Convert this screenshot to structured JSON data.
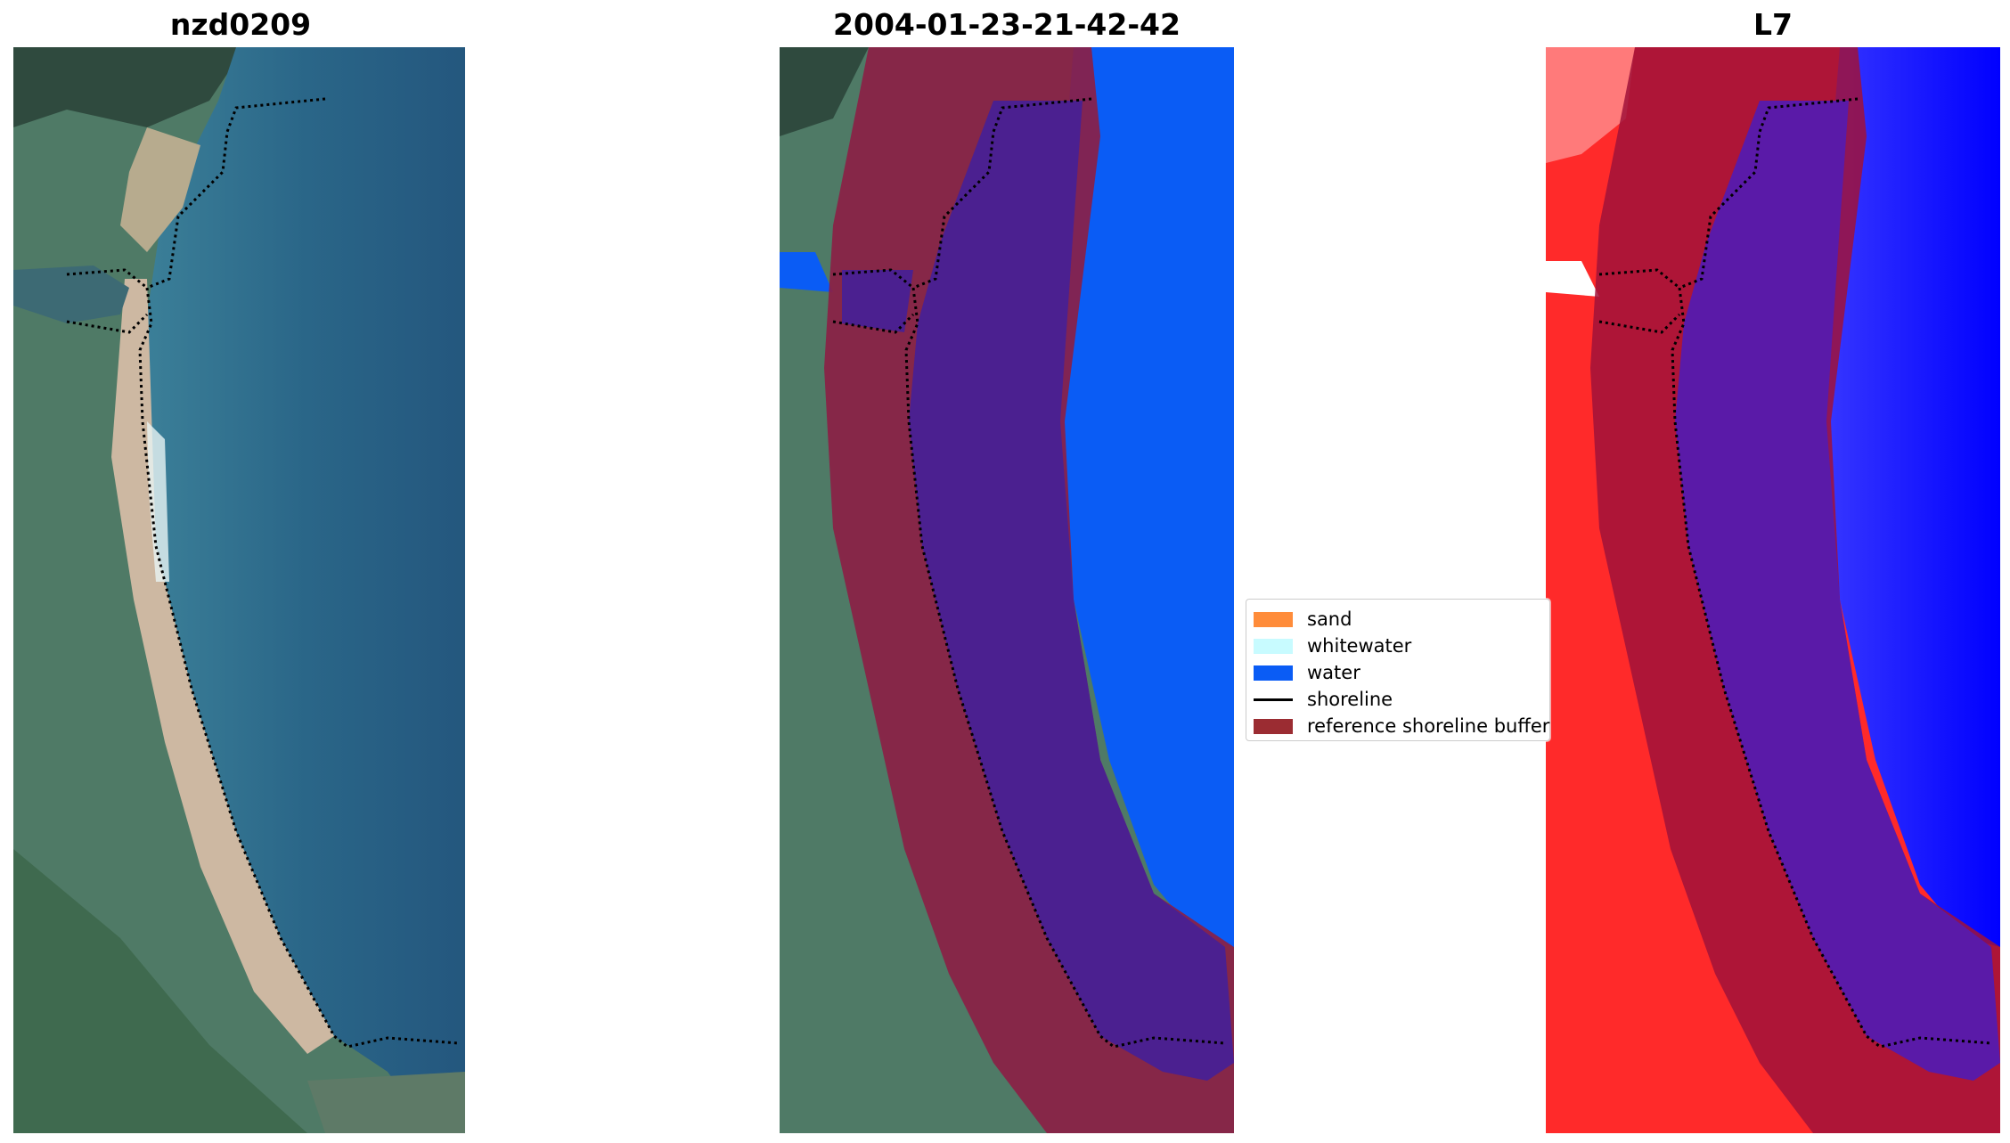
{
  "titles": {
    "left": "nzd0209",
    "center": "2004-01-23-21-42-42",
    "right": "L7"
  },
  "legend": {
    "items": [
      {
        "label": "sand",
        "color": "#ff8c3a"
      },
      {
        "label": "whitewater",
        "color": "#c8fbff"
      },
      {
        "label": "water",
        "color": "#0a5cf5"
      },
      {
        "label": "shoreline",
        "color": "#000000"
      },
      {
        "label": "reference shoreline buffer",
        "color": "#9b2c32"
      }
    ]
  },
  "colors": {
    "water_rgb": "#2a6688",
    "land_rgb": "#4f7a66",
    "beach_rgb": "#cdb8a2",
    "buffer": "#8b1f45",
    "class_water_overlay": "#4b2090",
    "class_water": "#0a5cf5",
    "index_land": "#ff2a2a",
    "index_water": "#1a1aff"
  }
}
